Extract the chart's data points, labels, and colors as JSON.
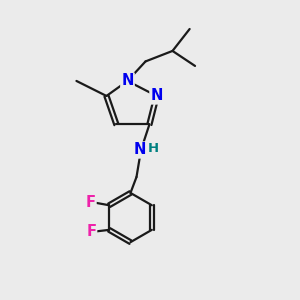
{
  "bg_color": "#ebebeb",
  "bond_color": "#1a1a1a",
  "N_color": "#0000ee",
  "F_color": "#ee22aa",
  "NH_color": "#008080",
  "lw": 1.6,
  "fs": 10.5,
  "xlim": [
    2.5,
    8.5
  ],
  "ylim": [
    0.3,
    10.2
  ]
}
